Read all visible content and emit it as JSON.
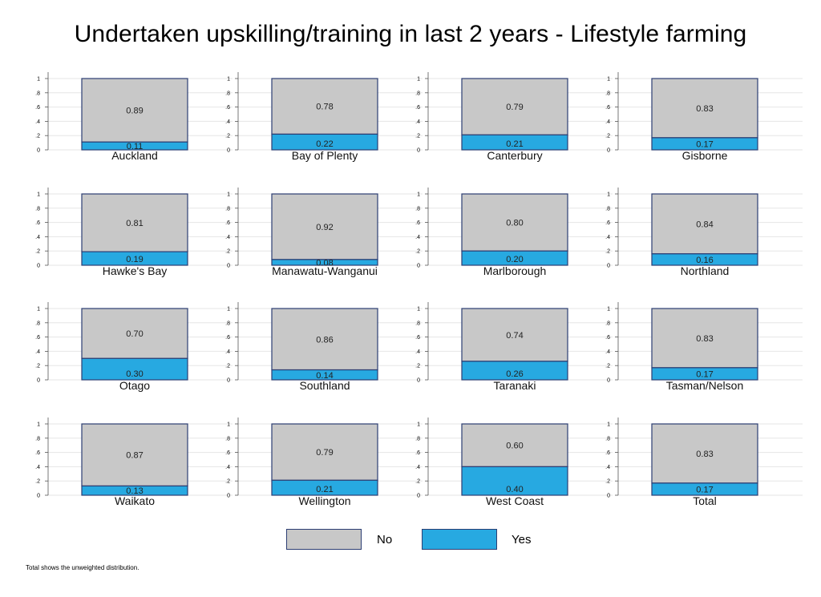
{
  "title": "Undertaken upskilling/training in last 2 years - Lifestyle farming",
  "note": "Total shows the unweighted distribution.",
  "colors": {
    "No": "#c8c8c8",
    "Yes": "#27a9e1",
    "bar_border": "#2c3e73",
    "grid": "#e6e6e6"
  },
  "legend": [
    {
      "label": "No",
      "color": "#c8c8c8"
    },
    {
      "label": "Yes",
      "color": "#27a9e1"
    }
  ],
  "chart_data": {
    "type": "bar",
    "stacked": true,
    "series_names": [
      "Yes",
      "No"
    ],
    "y_ticks": [
      "0",
      ".2",
      ".4",
      ".6",
      ".8",
      "1"
    ],
    "ylim": [
      0,
      1
    ],
    "panels": [
      {
        "label": "Auckland",
        "yes": 0.11,
        "no": 0.89,
        "yes_text": "0.11",
        "no_text": "0.89"
      },
      {
        "label": "Bay of Plenty",
        "yes": 0.22,
        "no": 0.78,
        "yes_text": "0.22",
        "no_text": "0.78"
      },
      {
        "label": "Canterbury",
        "yes": 0.21,
        "no": 0.79,
        "yes_text": "0.21",
        "no_text": "0.79"
      },
      {
        "label": "Gisborne",
        "yes": 0.17,
        "no": 0.83,
        "yes_text": "0.17",
        "no_text": "0.83"
      },
      {
        "label": "Hawke's Bay",
        "yes": 0.19,
        "no": 0.81,
        "yes_text": "0.19",
        "no_text": "0.81"
      },
      {
        "label": "Manawatu-Wanganui",
        "yes": 0.08,
        "no": 0.92,
        "yes_text": "0.08",
        "no_text": "0.92"
      },
      {
        "label": "Marlborough",
        "yes": 0.2,
        "no": 0.8,
        "yes_text": "0.20",
        "no_text": "0.80"
      },
      {
        "label": "Northland",
        "yes": 0.16,
        "no": 0.84,
        "yes_text": "0.16",
        "no_text": "0.84"
      },
      {
        "label": "Otago",
        "yes": 0.3,
        "no": 0.7,
        "yes_text": "0.30",
        "no_text": "0.70"
      },
      {
        "label": "Southland",
        "yes": 0.14,
        "no": 0.86,
        "yes_text": "0.14",
        "no_text": "0.86"
      },
      {
        "label": "Taranaki",
        "yes": 0.26,
        "no": 0.74,
        "yes_text": "0.26",
        "no_text": "0.74"
      },
      {
        "label": "Tasman/Nelson",
        "yes": 0.17,
        "no": 0.83,
        "yes_text": "0.17",
        "no_text": "0.83"
      },
      {
        "label": "Waikato",
        "yes": 0.13,
        "no": 0.87,
        "yes_text": "0.13",
        "no_text": "0.87"
      },
      {
        "label": "Wellington",
        "yes": 0.21,
        "no": 0.79,
        "yes_text": "0.21",
        "no_text": "0.79"
      },
      {
        "label": "West Coast",
        "yes": 0.4,
        "no": 0.6,
        "yes_text": "0.40",
        "no_text": "0.60"
      },
      {
        "label": "Total",
        "yes": 0.17,
        "no": 0.83,
        "yes_text": "0.17",
        "no_text": "0.83"
      }
    ]
  }
}
